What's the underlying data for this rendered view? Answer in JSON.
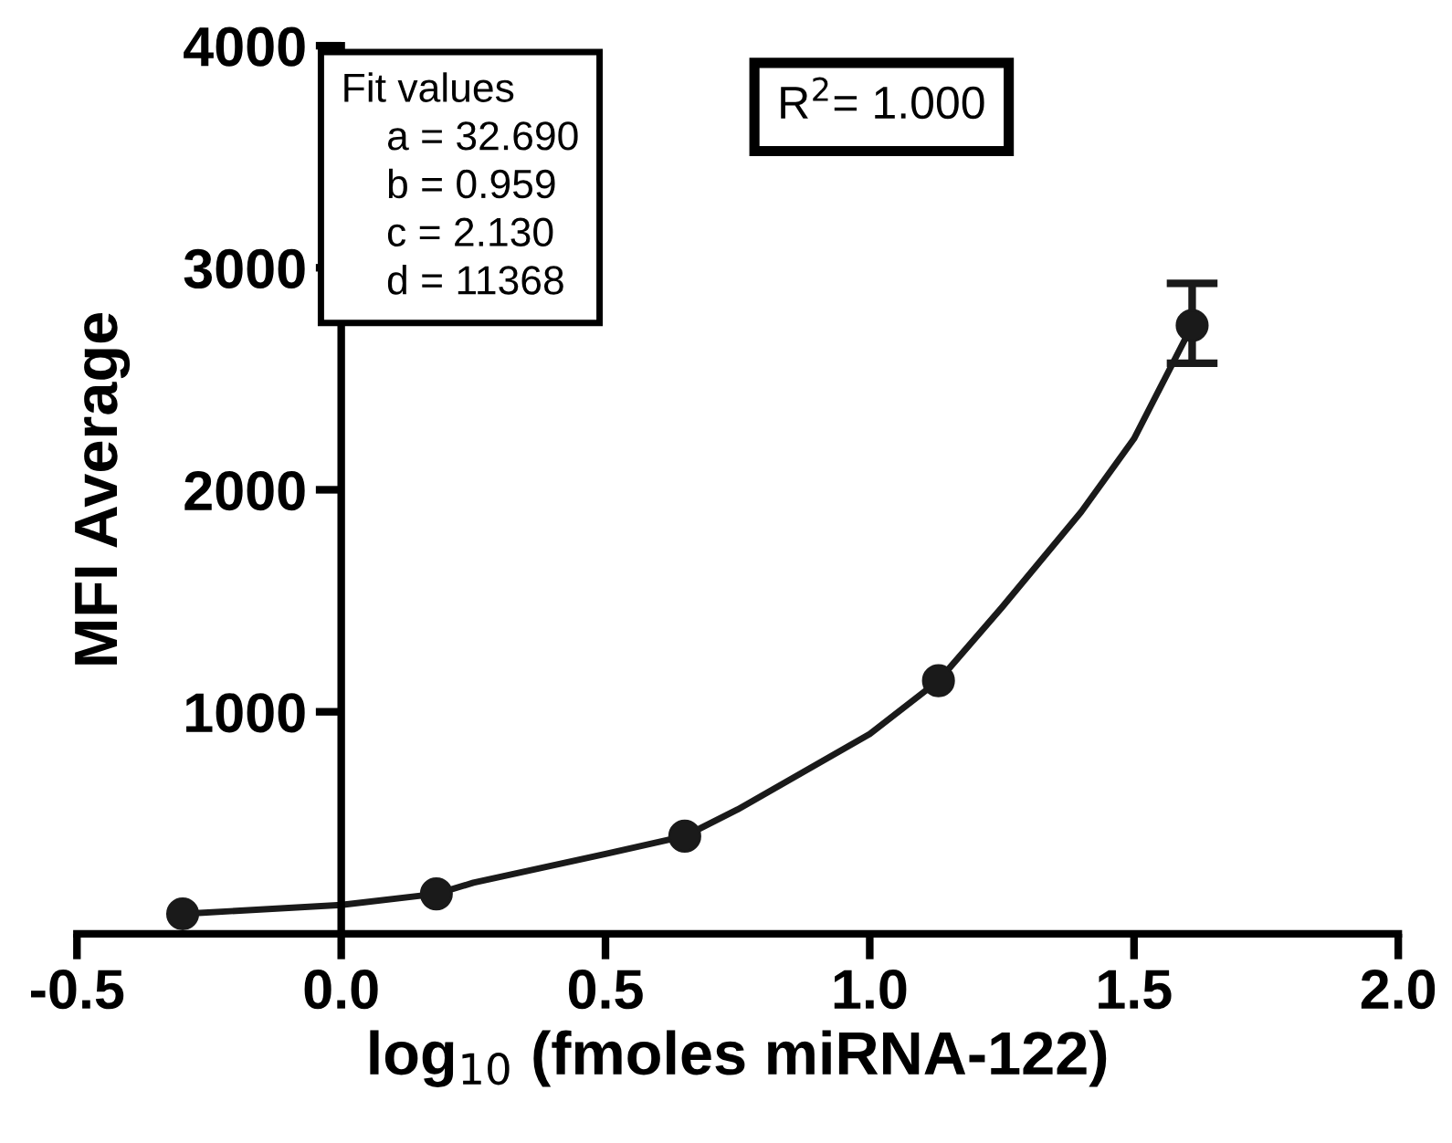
{
  "chart_data": {
    "type": "scatter",
    "xlabel": "log$_{10}$ (fmoles miRNA-122)",
    "ylabel": "MFI Average",
    "xlim": [
      -0.5,
      2.0
    ],
    "xticks": [
      {
        "value": -0.5,
        "label": "-0.5"
      },
      {
        "value": 0.0,
        "label": "0.0"
      },
      {
        "value": 0.5,
        "label": "0.5"
      },
      {
        "value": 1.0,
        "label": "1.0"
      },
      {
        "value": 1.5,
        "label": "1.5"
      },
      {
        "value": 2.0,
        "label": "2.0"
      }
    ],
    "ylim": [
      0,
      4000
    ],
    "yticks": [
      1000,
      2000,
      3000,
      4000
    ],
    "grid": false,
    "legend": false,
    "series": [
      {
        "type": "scatter",
        "color": "#1a1a1a",
        "marker": "circle",
        "x": [
          -0.3,
          0.18,
          0.65,
          1.13,
          1.61
        ],
        "values": [
          90,
          180,
          440,
          1140,
          2740
        ],
        "errors": [
          null,
          null,
          null,
          null,
          [
            2570,
            2930
          ]
        ]
      },
      {
        "type": "line",
        "color": "#1a1a1a",
        "marker": "none",
        "line_style": "solid",
        "x": [
          -0.3,
          0.0,
          0.18,
          0.25,
          0.5,
          0.65,
          0.75,
          1.0,
          1.13,
          1.25,
          1.4,
          1.5,
          1.61
        ],
        "values": [
          90,
          130,
          180,
          230,
          360,
          440,
          560,
          900,
          1140,
          1470,
          1900,
          2230,
          2740
        ]
      }
    ],
    "annotations": [
      "Fit values\n    a = 32.690\n    b = 0.959\n    c = 2.130\n    d = 11368",
      "R$^{2}$= 1.000"
    ]
  }
}
